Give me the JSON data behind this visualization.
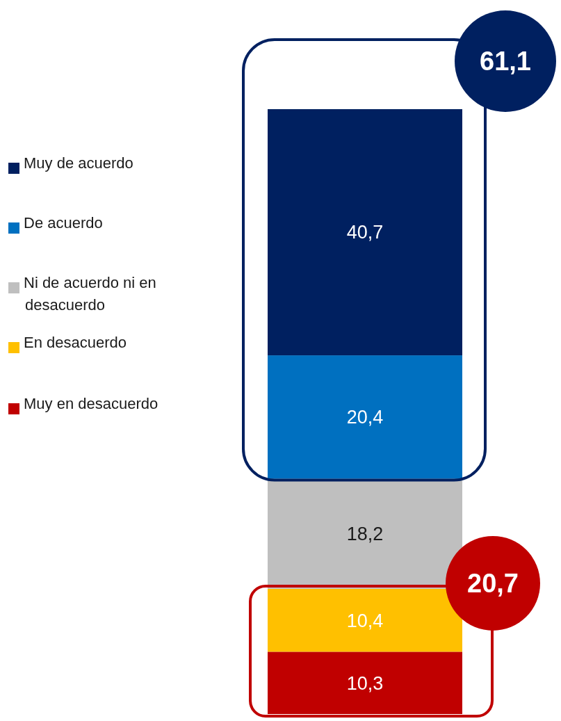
{
  "chart_data": {
    "type": "bar",
    "stacked": true,
    "categories": [
      null
    ],
    "legend": "left",
    "series": [
      {
        "name": "Muy en desacuerdo",
        "color": "#c00000",
        "values": [
          10.3
        ],
        "value_labels": [
          "10,3"
        ]
      },
      {
        "name": "En desacuerdo",
        "color": "#ffc000",
        "values": [
          10.4
        ],
        "value_labels": [
          "10,4"
        ]
      },
      {
        "name": "Ni de acuerdo ni en desacuerdo",
        "color": "#bfbfbf",
        "values": [
          18.2
        ],
        "value_labels": [
          "18,2"
        ]
      },
      {
        "name": "De acuerdo",
        "color": "#0070c0",
        "values": [
          20.4
        ],
        "value_labels": [
          "20,4"
        ]
      },
      {
        "name": "Muy de acuerdo",
        "color": "#002060",
        "values": [
          40.7
        ],
        "value_labels": [
          "40,7"
        ]
      }
    ],
    "annotations": [
      "61,1",
      "20,7"
    ]
  }
}
